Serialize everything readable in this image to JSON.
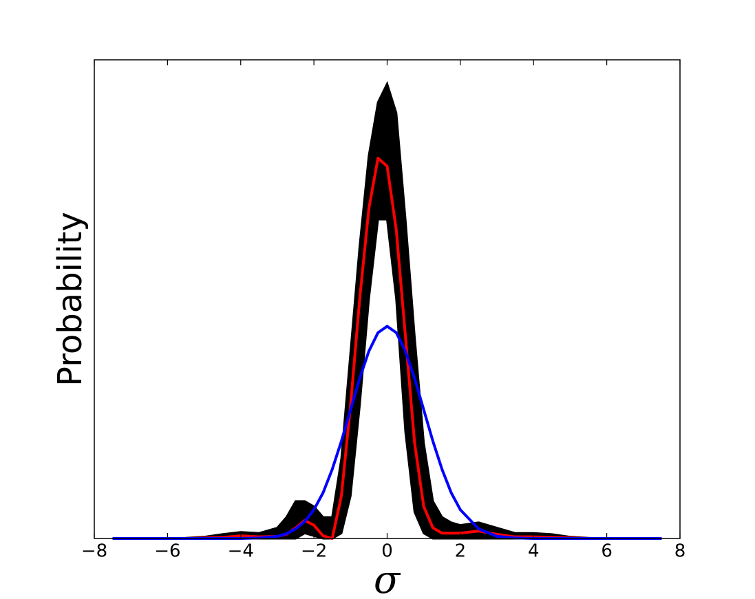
{
  "chart_data": {
    "type": "line",
    "xlabel": "σ",
    "ylabel": "Probability",
    "xlim": [
      -8,
      8
    ],
    "ylim": [
      0,
      0.9
    ],
    "xticks": [
      {
        "value": -8,
        "label": "−8"
      },
      {
        "value": -6,
        "label": "−6"
      },
      {
        "value": -4,
        "label": "−4"
      },
      {
        "value": -2,
        "label": "−2"
      },
      0,
      2,
      4,
      6,
      8
    ],
    "x": [
      -7.5,
      -7,
      -6.5,
      -6,
      -5.5,
      -5,
      -4.5,
      -4,
      -3.5,
      -3,
      -2.75,
      -2.5,
      -2.25,
      -2,
      -1.75,
      -1.5,
      -1.25,
      -1,
      -0.75,
      -0.5,
      -0.25,
      0,
      0.25,
      0.5,
      0.75,
      1,
      1.25,
      1.5,
      1.75,
      2,
      2.5,
      3,
      3.5,
      4,
      4.5,
      5,
      5.5,
      6,
      6.5,
      7,
      7.5
    ],
    "band": {
      "color": "#000000",
      "lower": [
        0,
        0,
        0,
        0,
        0,
        0,
        0,
        0,
        0,
        0,
        0,
        0,
        0.01,
        0.005,
        0,
        0,
        0.01,
        0.08,
        0.25,
        0.45,
        0.6,
        0.6,
        0.45,
        0.2,
        0.05,
        0.01,
        0,
        0,
        0,
        0,
        0,
        0,
        0,
        0,
        0,
        0,
        0,
        0,
        0,
        0,
        0
      ],
      "upper": [
        0,
        0,
        0,
        0,
        0.001,
        0.003,
        0.008,
        0.012,
        0.01,
        0.02,
        0.04,
        0.07,
        0.07,
        0.06,
        0.04,
        0.04,
        0.15,
        0.35,
        0.55,
        0.72,
        0.82,
        0.855,
        0.8,
        0.6,
        0.38,
        0.18,
        0.07,
        0.04,
        0.03,
        0.025,
        0.03,
        0.02,
        0.01,
        0.01,
        0.008,
        0.003,
        0.001,
        0,
        0,
        0,
        0
      ]
    },
    "series": [
      {
        "color": "#ff0000",
        "values": [
          0,
          0,
          0,
          0,
          0,
          0.001,
          0.002,
          0.005,
          0.003,
          0.004,
          0.008,
          0.02,
          0.034,
          0.025,
          0.005,
          0,
          0.08,
          0.25,
          0.45,
          0.62,
          0.715,
          0.7,
          0.58,
          0.38,
          0.18,
          0.06,
          0.02,
          0.01,
          0.01,
          0.01,
          0.014,
          0.008,
          0.003,
          0.003,
          0.002,
          0.001,
          0,
          0,
          0,
          0,
          0
        ]
      },
      {
        "color": "#0000ff",
        "values": [
          0,
          0,
          0,
          0,
          0,
          0,
          0,
          0,
          0.001,
          0.004,
          0.009,
          0.018,
          0.032,
          0.054,
          0.086,
          0.13,
          0.183,
          0.242,
          0.301,
          0.352,
          0.387,
          0.399,
          0.387,
          0.352,
          0.301,
          0.242,
          0.183,
          0.13,
          0.086,
          0.054,
          0.018,
          0.004,
          0.001,
          0,
          0,
          0,
          0,
          0,
          0,
          0,
          0
        ]
      }
    ]
  }
}
